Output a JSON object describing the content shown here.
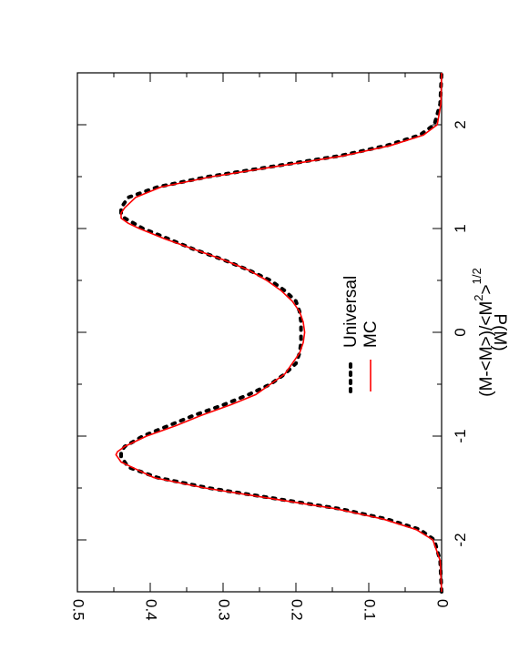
{
  "chart_data": {
    "type": "line",
    "orientation": "rotated-90-ccw",
    "title": "",
    "xlabel": "(M-<M>)/<M²>¹⁄²",
    "xlabel_parts": {
      "main": "(M-<M>)/<M",
      "sup_exp": "2",
      "close": ">",
      "sup_power": "1/2"
    },
    "ylabel": "P(M)",
    "xlim": [
      -2.5,
      2.5
    ],
    "ylim": [
      0,
      0.5
    ],
    "x_ticks": [
      "-2",
      "-1",
      "0",
      "1",
      "2"
    ],
    "y_ticks": [
      "0",
      "0.1",
      "0.2",
      "0.3",
      "0.4",
      "0.5"
    ],
    "grid": false,
    "legend_position": "center",
    "series": [
      {
        "name": "Universal",
        "style": "dotted",
        "color": "#000000",
        "x": [
          -2.5,
          -2.2,
          -2.0,
          -1.9,
          -1.8,
          -1.7,
          -1.6,
          -1.5,
          -1.4,
          -1.3,
          -1.2,
          -1.15,
          -1.1,
          -1.0,
          -0.9,
          -0.8,
          -0.7,
          -0.6,
          -0.5,
          -0.4,
          -0.3,
          -0.2,
          -0.1,
          0.0,
          0.1,
          0.2,
          0.3,
          0.4,
          0.5,
          0.6,
          0.7,
          0.8,
          0.9,
          1.0,
          1.1,
          1.15,
          1.2,
          1.3,
          1.4,
          1.5,
          1.6,
          1.7,
          1.8,
          1.9,
          2.0,
          2.2,
          2.5
        ],
        "y": [
          0.0,
          0.002,
          0.01,
          0.03,
          0.075,
          0.14,
          0.23,
          0.32,
          0.39,
          0.43,
          0.44,
          0.44,
          0.435,
          0.41,
          0.375,
          0.34,
          0.3,
          0.265,
          0.235,
          0.215,
          0.2,
          0.195,
          0.193,
          0.193,
          0.193,
          0.195,
          0.2,
          0.215,
          0.235,
          0.265,
          0.3,
          0.34,
          0.375,
          0.41,
          0.435,
          0.44,
          0.44,
          0.43,
          0.39,
          0.32,
          0.23,
          0.14,
          0.075,
          0.03,
          0.01,
          0.002,
          0.0
        ]
      },
      {
        "name": "MC",
        "style": "solid",
        "color": "#ff0000",
        "x": [
          -2.5,
          -2.2,
          -2.0,
          -1.9,
          -1.8,
          -1.7,
          -1.6,
          -1.5,
          -1.4,
          -1.3,
          -1.25,
          -1.2,
          -1.18,
          -1.15,
          -1.1,
          -1.0,
          -0.9,
          -0.8,
          -0.7,
          -0.6,
          -0.5,
          -0.4,
          -0.3,
          -0.2,
          -0.1,
          0.0,
          0.1,
          0.2,
          0.3,
          0.4,
          0.5,
          0.6,
          0.7,
          0.8,
          0.9,
          1.0,
          1.05,
          1.1,
          1.15,
          1.2,
          1.3,
          1.4,
          1.5,
          1.6,
          1.7,
          1.8,
          1.9,
          2.0,
          2.2,
          2.5
        ],
        "y": [
          0.0,
          0.002,
          0.012,
          0.035,
          0.08,
          0.145,
          0.235,
          0.325,
          0.395,
          0.425,
          0.44,
          0.445,
          0.447,
          0.445,
          0.435,
          0.405,
          0.365,
          0.33,
          0.29,
          0.255,
          0.235,
          0.215,
          0.205,
          0.195,
          0.19,
          0.188,
          0.19,
          0.195,
          0.205,
          0.22,
          0.24,
          0.265,
          0.3,
          0.34,
          0.38,
          0.415,
          0.43,
          0.44,
          0.44,
          0.435,
          0.42,
          0.385,
          0.315,
          0.225,
          0.135,
          0.07,
          0.025,
          0.006,
          0.001,
          0.0
        ]
      }
    ]
  }
}
